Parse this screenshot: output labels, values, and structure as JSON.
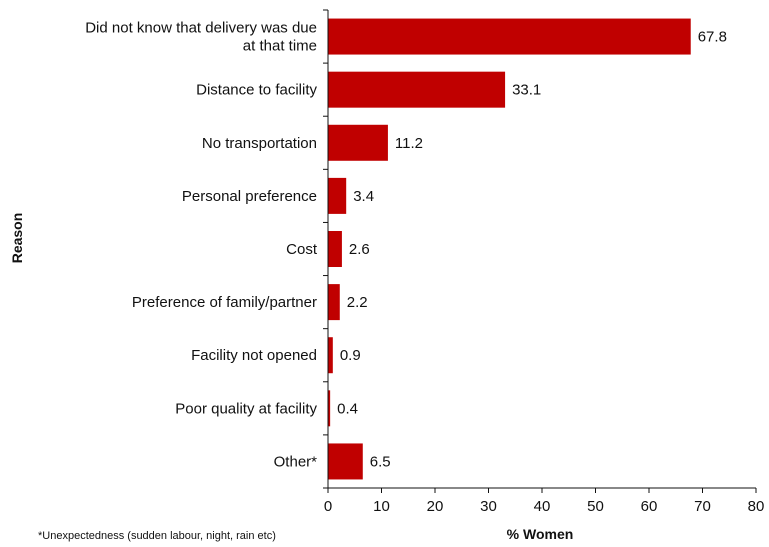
{
  "chart_data": {
    "type": "bar",
    "orientation": "horizontal",
    "categories": [
      "Did not know that delivery was due at that time",
      "Distance to facility",
      "No transportation",
      "Personal preference",
      "Cost",
      "Preference of family/partner",
      "Facility not opened",
      "Poor quality at facility",
      "Other*"
    ],
    "category_label_lines": [
      [
        "Did not know that delivery was due",
        "at that time"
      ],
      [
        "Distance to facility"
      ],
      [
        "No transportation"
      ],
      [
        "Personal preference"
      ],
      [
        "Cost"
      ],
      [
        "Preference of family/partner"
      ],
      [
        "Facility not opened"
      ],
      [
        "Poor quality at facility"
      ],
      [
        "Other*"
      ]
    ],
    "values": [
      67.8,
      33.1,
      11.2,
      3.4,
      2.6,
      2.2,
      0.9,
      0.4,
      6.5
    ],
    "value_labels": [
      "67.8",
      "33.1",
      "11.2",
      "3.4",
      "2.6",
      "2.2",
      "0.9",
      "0.4",
      "6.5"
    ],
    "xlabel": "% Women",
    "ylabel": "Reason",
    "xlim": [
      0,
      80
    ],
    "xticks": [
      0,
      10,
      20,
      30,
      40,
      50,
      60,
      70,
      80
    ],
    "bar_color": "#c00000",
    "grid": false,
    "legend": "none",
    "footnote": "*Unexpectedness (sudden labour, night, rain etc)"
  }
}
